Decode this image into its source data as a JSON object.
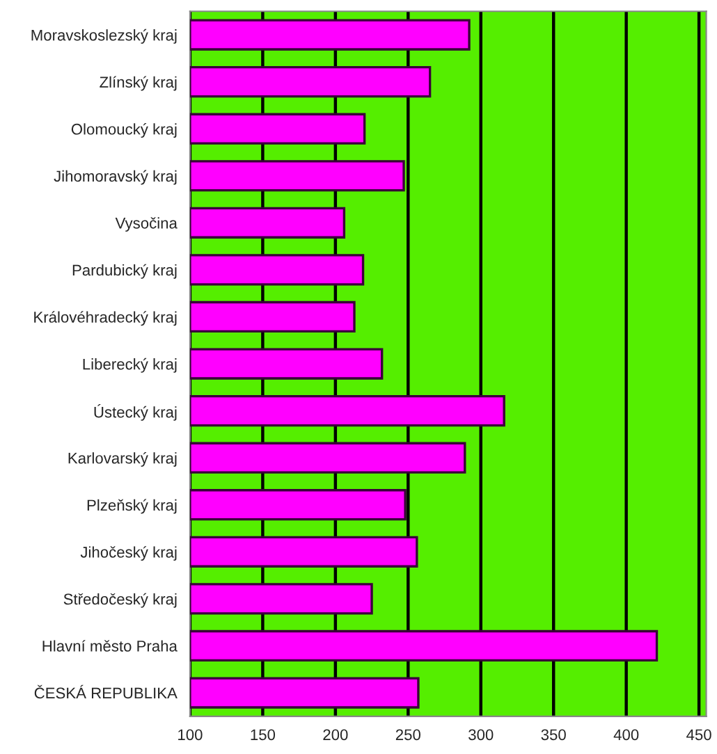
{
  "chart_data": {
    "type": "bar",
    "orientation": "horizontal",
    "categories": [
      "Moravskoslezský kraj",
      "Zlínský kraj",
      "Olomoucký kraj",
      "Jihomoravský kraj",
      "Vysočina",
      "Pardubický kraj",
      "Královéhradecký kraj",
      "Liberecký kraj",
      "Ústecký kraj",
      "Karlovarský kraj",
      "Plzeňský kraj",
      "Jihočeský kraj",
      "Středočeský kraj",
      "Hlavní město Praha",
      "ČESKÁ REPUBLIKA"
    ],
    "values": [
      292,
      265,
      220,
      247,
      206,
      219,
      213,
      232,
      316,
      289,
      248,
      256,
      225,
      421,
      257
    ],
    "color": "#ff00ff",
    "xlim": [
      100,
      455
    ],
    "xticks": [
      100,
      150,
      200,
      250,
      300,
      350,
      400,
      450
    ],
    "grid": "x"
  }
}
